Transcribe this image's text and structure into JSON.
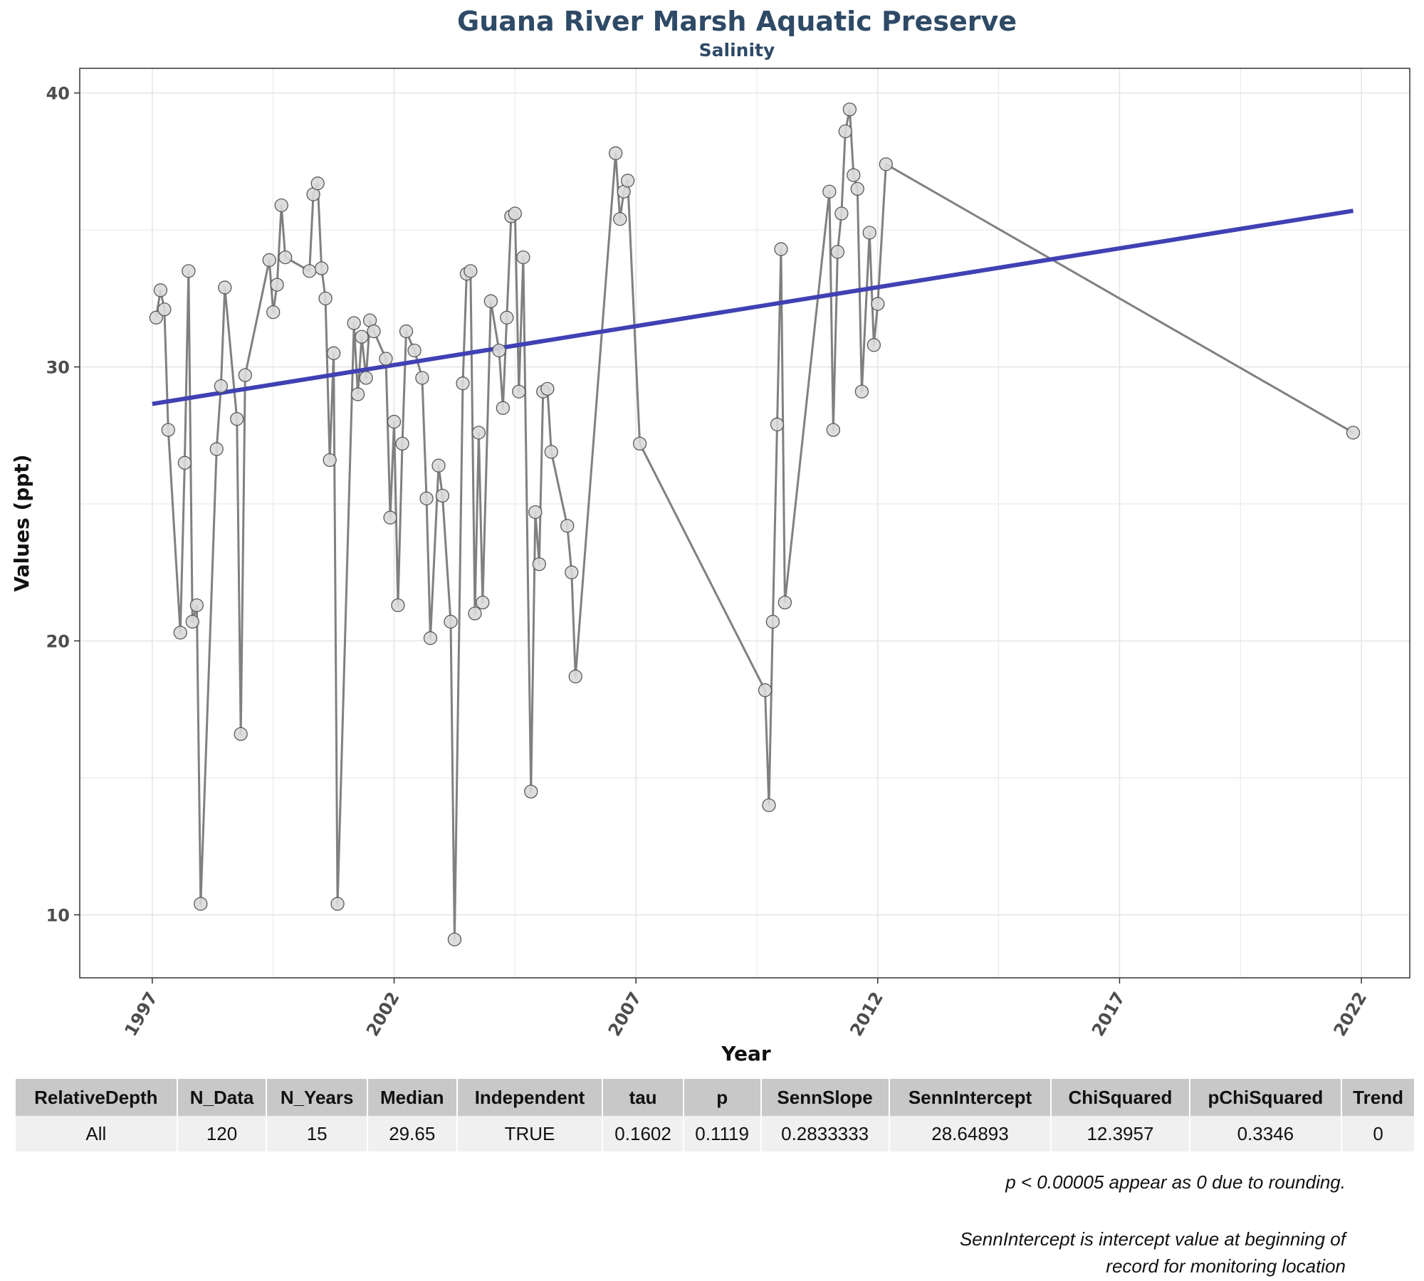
{
  "chart_data": {
    "type": "line",
    "title": "Guana River Marsh Aquatic Preserve",
    "subtitle": "Salinity",
    "xlabel": "Year",
    "ylabel": "Values (ppt)",
    "xlim": [
      1995.5,
      2023.0
    ],
    "ylim": [
      7.7,
      40.9
    ],
    "x_ticks": [
      "1997",
      "2002",
      "2007",
      "2012",
      "2017",
      "2022"
    ],
    "y_ticks": [
      "10",
      "20",
      "30",
      "40"
    ],
    "grid": true,
    "series": [
      {
        "points": [
          [
            1997.08,
            31.8
          ],
          [
            1997.17,
            32.8
          ],
          [
            1997.25,
            32.1
          ],
          [
            1997.33,
            27.7
          ],
          [
            1997.58,
            20.3
          ],
          [
            1997.67,
            26.5
          ],
          [
            1997.75,
            33.5
          ],
          [
            1997.83,
            20.7
          ],
          [
            1997.92,
            21.3
          ],
          [
            1998.0,
            10.4
          ],
          [
            1998.33,
            27.0
          ],
          [
            1998.42,
            29.3
          ],
          [
            1998.5,
            32.9
          ],
          [
            1998.75,
            28.1
          ],
          [
            1998.83,
            16.6
          ],
          [
            1998.92,
            29.7
          ],
          [
            1999.42,
            33.9
          ],
          [
            1999.5,
            32.0
          ],
          [
            1999.58,
            33.0
          ],
          [
            1999.67,
            35.9
          ],
          [
            1999.75,
            34.0
          ],
          [
            2000.25,
            33.5
          ],
          [
            2000.33,
            36.3
          ],
          [
            2000.42,
            36.7
          ],
          [
            2000.5,
            33.6
          ],
          [
            2000.58,
            32.5
          ],
          [
            2000.67,
            26.6
          ],
          [
            2000.75,
            30.5
          ],
          [
            2000.83,
            10.4
          ],
          [
            2001.17,
            31.6
          ],
          [
            2001.25,
            29.0
          ],
          [
            2001.33,
            31.1
          ],
          [
            2001.42,
            29.6
          ],
          [
            2001.5,
            31.7
          ],
          [
            2001.58,
            31.3
          ],
          [
            2001.83,
            30.3
          ],
          [
            2001.92,
            24.5
          ],
          [
            2002.0,
            28.0
          ],
          [
            2002.08,
            21.3
          ],
          [
            2002.17,
            27.2
          ],
          [
            2002.25,
            31.3
          ],
          [
            2002.42,
            30.6
          ],
          [
            2002.58,
            29.6
          ],
          [
            2002.67,
            25.2
          ],
          [
            2002.75,
            20.1
          ],
          [
            2002.92,
            26.4
          ],
          [
            2003.0,
            25.3
          ],
          [
            2003.17,
            20.7
          ],
          [
            2003.25,
            9.1
          ],
          [
            2003.42,
            29.4
          ],
          [
            2003.5,
            33.4
          ],
          [
            2003.58,
            33.5
          ],
          [
            2003.67,
            21.0
          ],
          [
            2003.75,
            27.6
          ],
          [
            2003.83,
            21.4
          ],
          [
            2004.0,
            32.4
          ],
          [
            2004.17,
            30.6
          ],
          [
            2004.25,
            28.5
          ],
          [
            2004.33,
            31.8
          ],
          [
            2004.42,
            35.5
          ],
          [
            2004.5,
            35.6
          ],
          [
            2004.58,
            29.1
          ],
          [
            2004.67,
            34.0
          ],
          [
            2004.83,
            14.5
          ],
          [
            2004.92,
            24.7
          ],
          [
            2005.0,
            22.8
          ],
          [
            2005.08,
            29.1
          ],
          [
            2005.17,
            29.2
          ],
          [
            2005.25,
            26.9
          ],
          [
            2005.58,
            24.2
          ],
          [
            2005.67,
            22.5
          ],
          [
            2005.75,
            18.7
          ],
          [
            2006.58,
            37.8
          ],
          [
            2006.67,
            35.4
          ],
          [
            2006.75,
            36.4
          ],
          [
            2006.83,
            36.8
          ],
          [
            2007.08,
            27.2
          ],
          [
            2009.67,
            18.2
          ],
          [
            2009.75,
            14.0
          ],
          [
            2009.83,
            20.7
          ],
          [
            2009.92,
            27.9
          ],
          [
            2010.0,
            34.3
          ],
          [
            2010.08,
            21.4
          ],
          [
            2011.0,
            36.4
          ],
          [
            2011.08,
            27.7
          ],
          [
            2011.17,
            34.2
          ],
          [
            2011.25,
            35.6
          ],
          [
            2011.33,
            38.6
          ],
          [
            2011.42,
            39.4
          ],
          [
            2011.5,
            37.0
          ],
          [
            2011.58,
            36.5
          ],
          [
            2011.67,
            29.1
          ],
          [
            2011.83,
            34.9
          ],
          [
            2011.92,
            30.8
          ],
          [
            2012.0,
            32.3
          ],
          [
            2012.17,
            37.4
          ],
          [
            2021.83,
            27.6
          ]
        ]
      },
      {
        "type": "trend-line",
        "points": [
          [
            1997.0,
            28.65
          ],
          [
            2021.83,
            35.7
          ]
        ]
      }
    ],
    "colors": {
      "line": "#808080",
      "marker_fill": "#d9d9d9",
      "marker_stroke": "#5a5a5a",
      "trend": "#3f41b4",
      "grid": "#e6e6e6",
      "axis_text": "#4d4d4d"
    }
  },
  "table": {
    "headers": [
      "RelativeDepth",
      "N_Data",
      "N_Years",
      "Median",
      "Independent",
      "tau",
      "p",
      "SennSlope",
      "SennIntercept",
      "ChiSquared",
      "pChiSquared",
      "Trend"
    ],
    "rows": [
      [
        "All",
        "120",
        "15",
        "29.65",
        "TRUE",
        "0.1602",
        "0.1119",
        "0.2833333",
        "28.64893",
        "12.3957",
        "0.3346",
        "0"
      ]
    ]
  },
  "notes": {
    "note1": "p < 0.00005 appear as 0 due to rounding.",
    "note2_line1": "SennIntercept is intercept value at beginning of",
    "note2_line2": "record for monitoring location"
  }
}
